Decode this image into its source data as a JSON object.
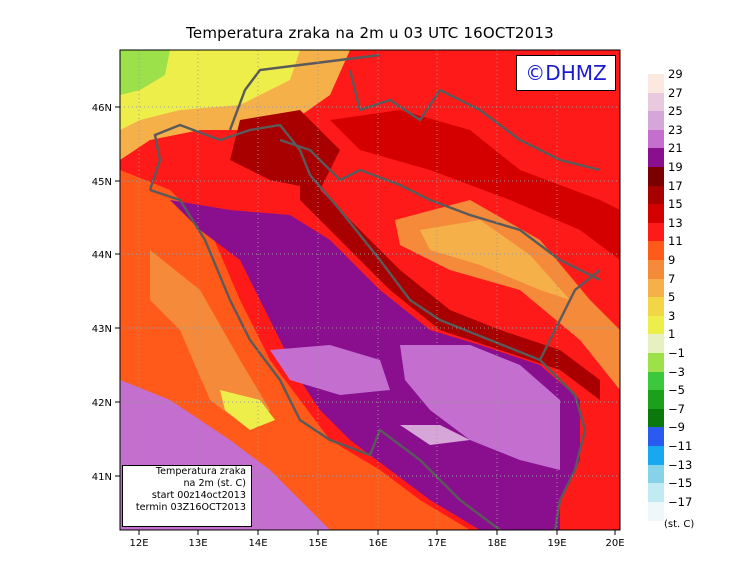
{
  "title": "Temperatura zraka na 2m u 03 UTC 16OCT2013",
  "copyright": "©DHMZ",
  "info_box": {
    "line1": "Temperatura zraka",
    "line2": "na 2m (st. C)",
    "line3": "start 00z14oct2013",
    "line4": "termin 03Z16OCT2013"
  },
  "axes": {
    "lon_labels": [
      "12E",
      "13E",
      "14E",
      "15E",
      "16E",
      "17E",
      "18E",
      "19E",
      "20E"
    ],
    "lat_labels": [
      "46N",
      "45N",
      "44N",
      "43N",
      "42N",
      "41N"
    ]
  },
  "colorbar": {
    "labels": [
      "29",
      "27",
      "25",
      "23",
      "21",
      "19",
      "17",
      "15",
      "13",
      "11",
      "9",
      "7",
      "5",
      "3",
      "1",
      "−1",
      "−3",
      "−5",
      "−7",
      "−9",
      "−11",
      "−13",
      "−15",
      "−17"
    ],
    "colors": [
      "#fbe9df",
      "#e8c9e0",
      "#d7a6d8",
      "#c46fd0",
      "#8a0f8f",
      "#7a0000",
      "#a80000",
      "#d40000",
      "#ff1a1a",
      "#ff5a1a",
      "#f58a3a",
      "#f5b04a",
      "#f2d646",
      "#eeee4a",
      "#e7f0c0",
      "#9ce04a",
      "#3cc83c",
      "#1aa01a",
      "#0a780a",
      "#2a5aef",
      "#18a8f0",
      "#86d2e8",
      "#c2eaf2",
      "#eef8fb"
    ],
    "unit": "(st. C)"
  }
}
